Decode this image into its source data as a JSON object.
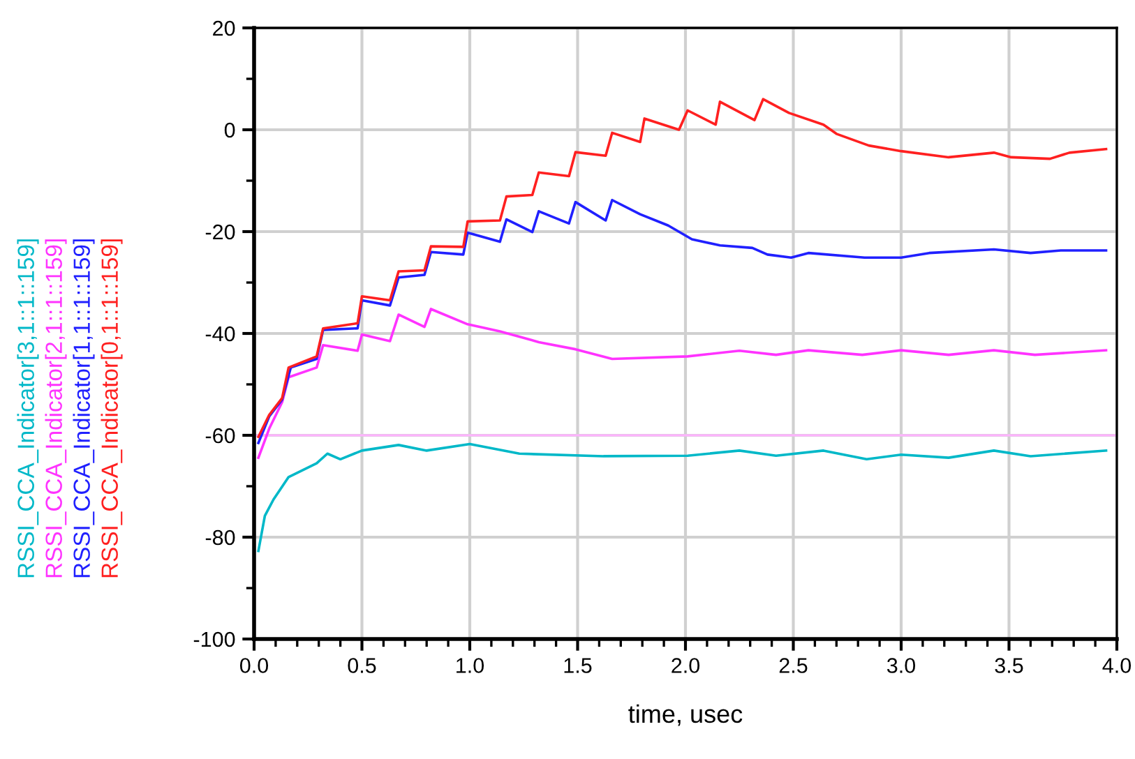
{
  "chart_data": {
    "type": "line",
    "xlabel": "time, usec",
    "xlim": [
      0,
      4.0
    ],
    "xticks": [
      {
        "value": 0,
        "label": "0.0"
      },
      {
        "value": 0.5,
        "label": "0.5"
      },
      {
        "value": 1,
        "label": "1.0"
      },
      {
        "value": 1.5,
        "label": "1.5"
      },
      {
        "value": 2,
        "label": "2.0"
      },
      {
        "value": 2.5,
        "label": "2.5"
      },
      {
        "value": 3,
        "label": "3.0"
      },
      {
        "value": 3.5,
        "label": "3.5"
      },
      {
        "value": 4,
        "label": "4.0"
      },
      {
        "value": 0.1,
        "label": null
      },
      {
        "value": 0.2,
        "label": null
      },
      {
        "value": 0.3,
        "label": null
      },
      {
        "value": 0.4,
        "label": null
      },
      {
        "value": 0.6,
        "label": null
      },
      {
        "value": 0.7,
        "label": null
      },
      {
        "value": 0.8,
        "label": null
      },
      {
        "value": 0.9,
        "label": null
      },
      {
        "value": 1.1,
        "label": null
      },
      {
        "value": 1.2,
        "label": null
      },
      {
        "value": 1.3,
        "label": null
      },
      {
        "value": 1.4,
        "label": null
      },
      {
        "value": 1.6,
        "label": null
      },
      {
        "value": 1.7,
        "label": null
      },
      {
        "value": 1.8,
        "label": null
      },
      {
        "value": 1.9,
        "label": null
      },
      {
        "value": 2.1,
        "label": null
      },
      {
        "value": 2.2,
        "label": null
      },
      {
        "value": 2.3,
        "label": null
      },
      {
        "value": 2.4,
        "label": null
      },
      {
        "value": 2.6,
        "label": null
      },
      {
        "value": 2.7,
        "label": null
      },
      {
        "value": 2.8,
        "label": null
      },
      {
        "value": 2.9,
        "label": null
      },
      {
        "value": 3.1,
        "label": null
      },
      {
        "value": 3.2,
        "label": null
      },
      {
        "value": 3.3,
        "label": null
      },
      {
        "value": 3.4,
        "label": null
      },
      {
        "value": 3.6,
        "label": null
      },
      {
        "value": 3.7,
        "label": null
      },
      {
        "value": 3.8,
        "label": null
      },
      {
        "value": 3.9,
        "label": null
      }
    ],
    "ylim": [
      -100,
      20
    ],
    "yticks": [
      -100,
      -80,
      -60,
      -40,
      -20,
      0,
      20,
      {
        "value": -90,
        "label": null
      },
      {
        "value": -70,
        "label": null
      },
      {
        "value": -50,
        "label": null
      },
      {
        "value": -30,
        "label": null
      },
      {
        "value": -10,
        "label": null
      },
      {
        "value": 10,
        "label": null
      }
    ],
    "grid": true,
    "marker": "none",
    "line_style": "solid",
    "legend": false,
    "ref_lines": [
      {
        "axis": "y",
        "value": -60,
        "color": "#ffb3ff"
      }
    ],
    "series": [
      {
        "name": "RSSI_CCA_Indicator[3,1::1::159]",
        "color": "#00b8c8",
        "x": [
          0.02,
          0.05,
          0.09,
          0.16,
          0.29,
          0.34,
          0.4,
          0.5,
          0.67,
          0.8,
          1.0,
          1.23,
          1.62,
          2.01,
          2.25,
          2.42,
          2.64,
          2.84,
          3.0,
          3.22,
          3.43,
          3.6,
          3.95
        ],
        "values": [
          -82.7,
          -75.8,
          -72.6,
          -68.2,
          -65.5,
          -63.6,
          -64.7,
          -63,
          -61.9,
          -63,
          -61.7,
          -63.6,
          -64.1,
          -64,
          -63,
          -64,
          -63,
          -64.7,
          -63.8,
          -64.4,
          -63,
          -64.1,
          -63
        ]
      },
      {
        "name": "RSSI_CCA_Indicator[2,1::1::159]",
        "color": "#ff33ff",
        "x": [
          0.02,
          0.07,
          0.13,
          0.16,
          0.29,
          0.32,
          0.48,
          0.5,
          0.63,
          0.67,
          0.79,
          0.82,
          0.99,
          1.14,
          1.32,
          1.49,
          1.66,
          2.01,
          2.25,
          2.42,
          2.57,
          2.82,
          3.0,
          3.22,
          3.43,
          3.62,
          3.95
        ],
        "values": [
          -64.4,
          -58.7,
          -53.5,
          -48.6,
          -46.7,
          -42.3,
          -43.4,
          -40.2,
          -41.5,
          -36.3,
          -38.7,
          -35.2,
          -38.2,
          -39.6,
          -41.7,
          -43.1,
          -45,
          -44.5,
          -43.4,
          -44.2,
          -43.3,
          -44.2,
          -43.3,
          -44.2,
          -43.3,
          -44.2,
          -43.3
        ]
      },
      {
        "name": "RSSI_CCA_Indicator[1,1::1::159]",
        "color": "#2020ff",
        "x": [
          0.02,
          0.07,
          0.13,
          0.17,
          0.29,
          0.32,
          0.48,
          0.5,
          0.63,
          0.67,
          0.79,
          0.82,
          0.97,
          0.99,
          1.14,
          1.17,
          1.29,
          1.32,
          1.46,
          1.49,
          1.63,
          1.66,
          1.79,
          1.92,
          2.03,
          2.16,
          2.31,
          2.38,
          2.49,
          2.57,
          2.83,
          3.0,
          3.13,
          3.43,
          3.6,
          3.74,
          3.95
        ],
        "values": [
          -61.5,
          -56.3,
          -53,
          -46.7,
          -45,
          -39.3,
          -39,
          -33.5,
          -34.5,
          -29,
          -28.5,
          -24,
          -24.5,
          -20.2,
          -22,
          -17.6,
          -20.1,
          -16,
          -18.4,
          -14.2,
          -17.8,
          -13.8,
          -16.6,
          -18.8,
          -21.5,
          -22.7,
          -23.2,
          -24.5,
          -25.1,
          -24.2,
          -25.1,
          -25.1,
          -24.2,
          -23.5,
          -24.2,
          -23.7,
          -23.7
        ]
      },
      {
        "name": "RSSI_CCA_Indicator[0,1::1::159]",
        "color": "#ff2020",
        "x": [
          0.02,
          0.07,
          0.13,
          0.16,
          0.29,
          0.32,
          0.48,
          0.5,
          0.63,
          0.67,
          0.79,
          0.82,
          0.97,
          0.99,
          1.14,
          1.17,
          1.29,
          1.32,
          1.46,
          1.49,
          1.63,
          1.66,
          1.79,
          1.81,
          1.97,
          2.01,
          2.14,
          2.16,
          2.32,
          2.36,
          2.48,
          2.64,
          2.7,
          2.85,
          3.0,
          3.22,
          3.43,
          3.51,
          3.69,
          3.78,
          3.95
        ],
        "values": [
          -60.3,
          -56,
          -52.7,
          -46.7,
          -44.5,
          -39,
          -38,
          -32.7,
          -33.5,
          -27.8,
          -27.6,
          -22.9,
          -23,
          -18,
          -17.8,
          -13.1,
          -12.8,
          -8.4,
          -9.1,
          -4.4,
          -5.1,
          -0.6,
          -2.4,
          2.2,
          0,
          3.8,
          1,
          5.5,
          1.9,
          6,
          3.3,
          1,
          -0.8,
          -3.1,
          -4.2,
          -5.4,
          -4.5,
          -5.4,
          -5.7,
          -4.5,
          -3.8
        ]
      }
    ]
  }
}
